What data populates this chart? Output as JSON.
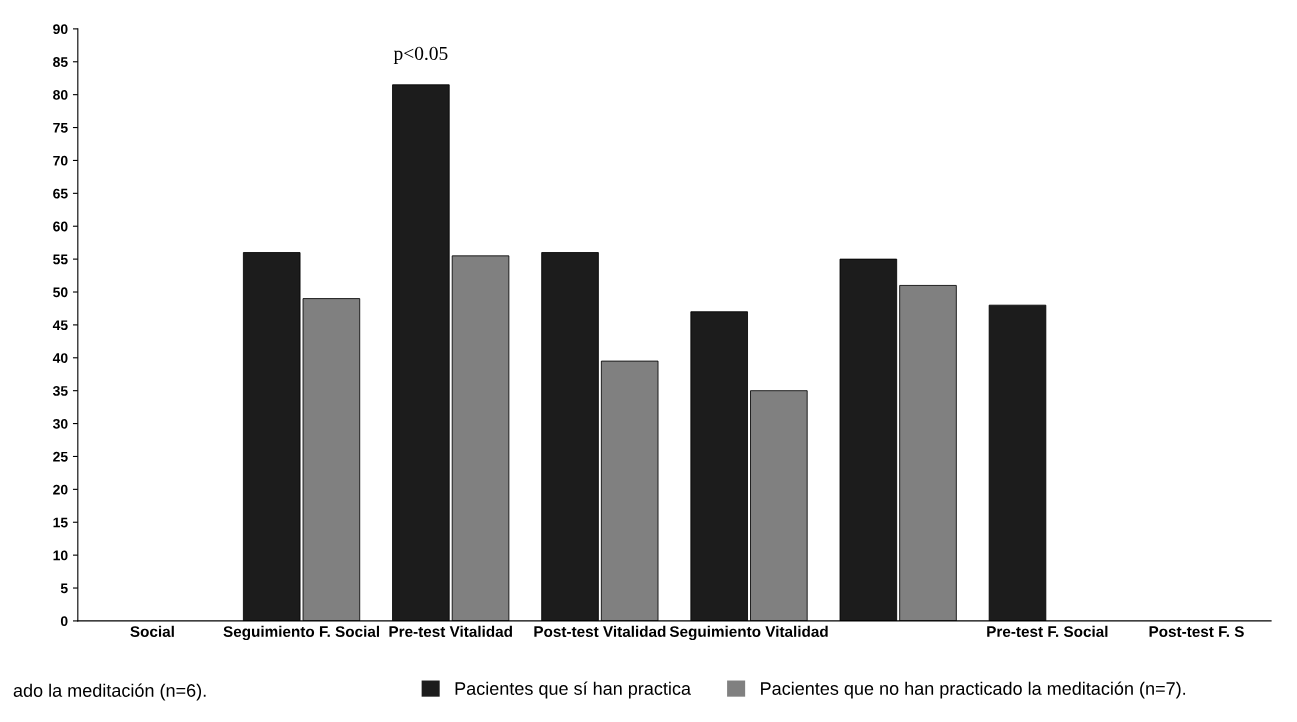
{
  "chart_data": {
    "type": "bar",
    "categories": [
      "Social",
      "Seguimiento F. Social",
      "Pre-test Vitalidad",
      "Post-test Vitalidad",
      "Seguimiento Vitalidad",
      null,
      "Pre-test F. Social",
      "Post-test F. S"
    ],
    "series": [
      {
        "name": "Pacientes que sí han practica",
        "color": "#1c1c1c",
        "values": [
          null,
          56,
          81.5,
          56,
          47,
          55,
          48,
          null
        ]
      },
      {
        "name": "Pacientes que no han practicado la meditación (n=7).",
        "color": "#808080",
        "values": [
          null,
          49,
          55.5,
          39.5,
          35,
          51,
          null,
          null
        ]
      }
    ],
    "ylim": [
      0,
      90
    ],
    "yticks": [
      0,
      5,
      10,
      15,
      20,
      25,
      30,
      35,
      40,
      45,
      50,
      55,
      60,
      65,
      70,
      75,
      80,
      85,
      90
    ],
    "annotations": [
      {
        "text": "p<0.05",
        "x": "Pre-test Vitalidad",
        "y": 81.5
      },
      "ado la meditación (n=6)."
    ],
    "legend": "bottom",
    "grid": false
  }
}
